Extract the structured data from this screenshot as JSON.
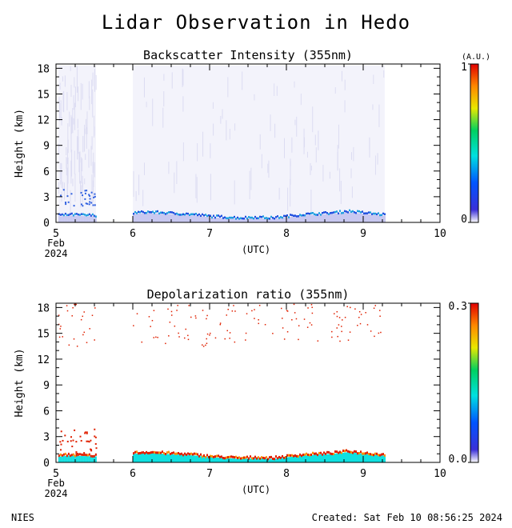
{
  "page_title": "Lidar Observation in Hedo",
  "footer": {
    "left": "NIES",
    "right": "Created: Sat Feb 10 08:56:25 2024"
  },
  "chart_data": [
    {
      "type": "heatmap",
      "title": "Backscatter Intensity (355nm)",
      "ylabel": "Height (km)",
      "xlabel": "(UTC)",
      "x_ticks": [
        "5",
        "6",
        "7",
        "8",
        "9",
        "10"
      ],
      "x_month": "Feb",
      "x_year": "2024",
      "y_ticks": [
        "0",
        "3",
        "6",
        "9",
        "12",
        "15",
        "18"
      ],
      "xlim": [
        5,
        10
      ],
      "ylim": [
        0,
        18.5
      ],
      "colorbar": {
        "unit": "(A.U.)",
        "min_label": "0",
        "max_label": "1",
        "min": 0,
        "max": 1
      },
      "data_segments": [
        [
          5.03,
          5.52
        ],
        [
          6.0,
          9.28
        ]
      ],
      "boundary_layer_top_km": [
        [
          5.05,
          0.7
        ],
        [
          5.15,
          0.8
        ],
        [
          5.3,
          0.75
        ],
        [
          5.5,
          0.7
        ],
        [
          6.0,
          1.0
        ],
        [
          6.2,
          1.1
        ],
        [
          6.4,
          1.0
        ],
        [
          6.6,
          0.9
        ],
        [
          6.8,
          0.8
        ],
        [
          7.0,
          0.6
        ],
        [
          7.2,
          0.5
        ],
        [
          7.4,
          0.4
        ],
        [
          7.6,
          0.5
        ],
        [
          7.8,
          0.4
        ],
        [
          8.0,
          0.6
        ],
        [
          8.2,
          0.8
        ],
        [
          8.4,
          0.9
        ],
        [
          8.6,
          1.0
        ],
        [
          8.8,
          1.2
        ],
        [
          9.0,
          1.0
        ],
        [
          9.25,
          0.8
        ]
      ]
    },
    {
      "type": "heatmap",
      "title": "Depolarization ratio (355nm)",
      "ylabel": "Height (km)",
      "xlabel": "(UTC)",
      "x_ticks": [
        "5",
        "6",
        "7",
        "8",
        "9",
        "10"
      ],
      "x_month": "Feb",
      "x_year": "2024",
      "y_ticks": [
        "0",
        "3",
        "6",
        "9",
        "12",
        "15",
        "18"
      ],
      "xlim": [
        5,
        10
      ],
      "ylim": [
        0,
        18.5
      ],
      "colorbar": {
        "unit": "",
        "min_label": "0.0",
        "max_label": "0.3",
        "min": 0,
        "max": 0.3
      },
      "data_segments": [
        [
          5.03,
          5.52
        ],
        [
          6.0,
          9.28
        ]
      ],
      "boundary_layer_top_km": [
        [
          5.05,
          0.7
        ],
        [
          5.15,
          0.8
        ],
        [
          5.3,
          0.75
        ],
        [
          5.5,
          0.7
        ],
        [
          6.0,
          1.0
        ],
        [
          6.2,
          1.1
        ],
        [
          6.4,
          1.0
        ],
        [
          6.6,
          0.9
        ],
        [
          6.8,
          0.8
        ],
        [
          7.0,
          0.6
        ],
        [
          7.2,
          0.5
        ],
        [
          7.4,
          0.4
        ],
        [
          7.6,
          0.5
        ],
        [
          7.8,
          0.4
        ],
        [
          8.0,
          0.6
        ],
        [
          8.2,
          0.8
        ],
        [
          8.4,
          0.9
        ],
        [
          8.6,
          1.0
        ],
        [
          8.8,
          1.2
        ],
        [
          9.0,
          1.0
        ],
        [
          9.25,
          0.8
        ]
      ]
    }
  ]
}
